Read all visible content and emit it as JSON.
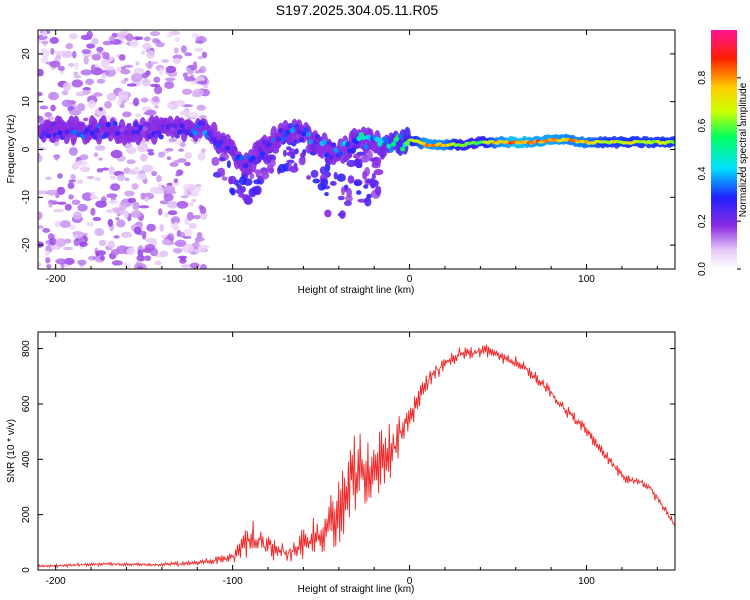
{
  "title": "S197.2025.304.05.11.R05",
  "colors": {
    "snr_line": "#ee2b2b",
    "axis": "#000000",
    "background": "#ffffff"
  },
  "chart_data": [
    {
      "type": "heatmap",
      "name": "spectrogram",
      "xlabel": "Height of straight line (km)",
      "ylabel": "Frequency (Hz)",
      "xlim": [
        -210,
        150
      ],
      "ylim": [
        -25,
        25
      ],
      "xticks": [
        -200,
        -100,
        0,
        100
      ],
      "yticks": [
        -20,
        -10,
        0,
        10,
        20
      ],
      "colorbar": {
        "label": "Normalized spectral amplitude",
        "range": [
          0,
          1
        ],
        "ticks": [
          0.0,
          0.2,
          0.4,
          0.6,
          0.8
        ]
      },
      "track": {
        "x": [
          -205,
          -190,
          -175,
          -160,
          -145,
          -130,
          -118,
          -110,
          -100,
          -90,
          -80,
          -70,
          -60,
          -50,
          -40,
          -30,
          -20,
          -10,
          0,
          10,
          20,
          30,
          40,
          50,
          60,
          70,
          80,
          90,
          100,
          110,
          120,
          130,
          140,
          150
        ],
        "freq": [
          4,
          4,
          4,
          4,
          4,
          4,
          5,
          3,
          -1,
          -3,
          2,
          4,
          3,
          1,
          -1,
          2,
          2,
          1,
          2,
          1,
          1,
          1,
          1.5,
          1.5,
          1.5,
          1.5,
          2,
          2,
          1.5,
          1.5,
          1.5,
          1.5,
          1.5,
          1.5
        ],
        "amp": [
          0.25,
          0.3,
          0.3,
          0.25,
          0.25,
          0.25,
          0.35,
          0.3,
          0.3,
          0.3,
          0.3,
          0.3,
          0.35,
          0.35,
          0.35,
          0.45,
          0.4,
          0.5,
          0.6,
          0.85,
          0.8,
          0.6,
          0.6,
          0.8,
          0.9,
          0.85,
          0.85,
          0.8,
          0.8,
          0.7,
          0.7,
          0.7,
          0.7,
          0.7
        ]
      }
    },
    {
      "type": "line",
      "name": "snr",
      "xlabel": "Height of straight line (km)",
      "ylabel": "SNR (10 * v/v)",
      "xlim": [
        -210,
        150
      ],
      "ylim": [
        0,
        860
      ],
      "xticks": [
        -200,
        -100,
        0,
        100
      ],
      "yticks": [
        0,
        200,
        400,
        600,
        800
      ],
      "series": [
        {
          "name": "SNR",
          "x": [
            -210,
            -200,
            -190,
            -180,
            -170,
            -160,
            -150,
            -140,
            -130,
            -120,
            -110,
            -100,
            -95,
            -90,
            -85,
            -80,
            -75,
            -70,
            -65,
            -60,
            -55,
            -50,
            -45,
            -40,
            -35,
            -30,
            -25,
            -20,
            -15,
            -10,
            -5,
            0,
            5,
            10,
            15,
            20,
            25,
            30,
            35,
            40,
            45,
            50,
            55,
            60,
            65,
            70,
            75,
            80,
            85,
            90,
            95,
            100,
            105,
            110,
            115,
            120,
            125,
            130,
            135,
            140,
            145,
            150
          ],
          "y": [
            15,
            15,
            18,
            20,
            22,
            20,
            20,
            20,
            22,
            25,
            35,
            45,
            80,
            120,
            100,
            85,
            75,
            60,
            70,
            90,
            110,
            130,
            170,
            220,
            280,
            330,
            360,
            370,
            400,
            440,
            500,
            560,
            620,
            680,
            720,
            750,
            770,
            780,
            785,
            790,
            790,
            780,
            760,
            750,
            730,
            700,
            670,
            640,
            600,
            570,
            540,
            500,
            460,
            420,
            380,
            340,
            320,
            320,
            300,
            260,
            210,
            160
          ],
          "spread": [
            10,
            10,
            12,
            12,
            12,
            12,
            12,
            12,
            15,
            15,
            25,
            40,
            80,
            120,
            100,
            90,
            80,
            70,
            80,
            100,
            120,
            140,
            170,
            250,
            300,
            320,
            300,
            280,
            250,
            200,
            150,
            110,
            80,
            70,
            60,
            50,
            50,
            50,
            45,
            45,
            45,
            45,
            40,
            40,
            40,
            40,
            40,
            40,
            40,
            40,
            40,
            40,
            40,
            40,
            35,
            35,
            30,
            30,
            30,
            30,
            30,
            30
          ]
        }
      ]
    }
  ]
}
